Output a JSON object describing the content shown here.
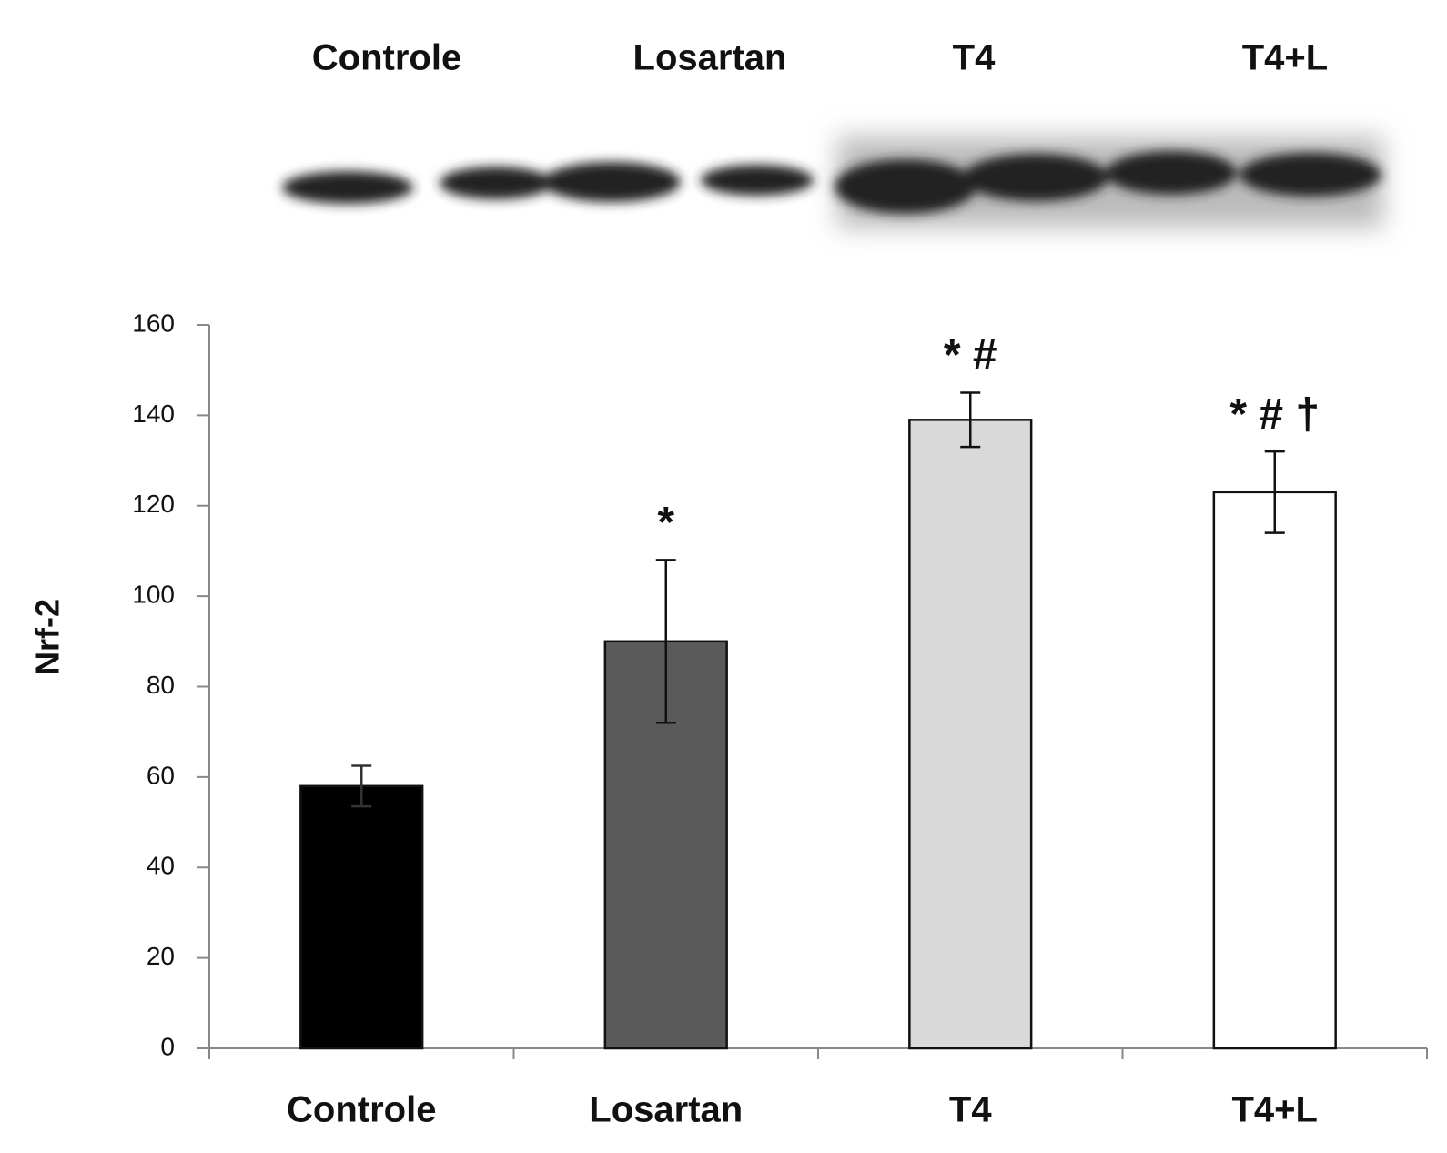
{
  "chart_data": {
    "type": "bar",
    "blot_labels": [
      "Controle",
      "Losartan",
      "T4",
      "T4+L"
    ],
    "y_label": "Nrf-2",
    "categories": [
      "Controle",
      "Losartan",
      "T4",
      "T4+L"
    ],
    "values": [
      58,
      90,
      139,
      123
    ],
    "errors": [
      4.5,
      18,
      6,
      9
    ],
    "colors": [
      "#000000",
      "#5a5a5a",
      "#d9d9d9",
      "#ffffff"
    ],
    "annotations": [
      null,
      "*",
      "* #",
      "* # †"
    ],
    "ylim": [
      0,
      160
    ],
    "yticks": [
      0,
      20,
      40,
      60,
      80,
      100,
      120,
      140,
      160
    ],
    "grid": false
  }
}
